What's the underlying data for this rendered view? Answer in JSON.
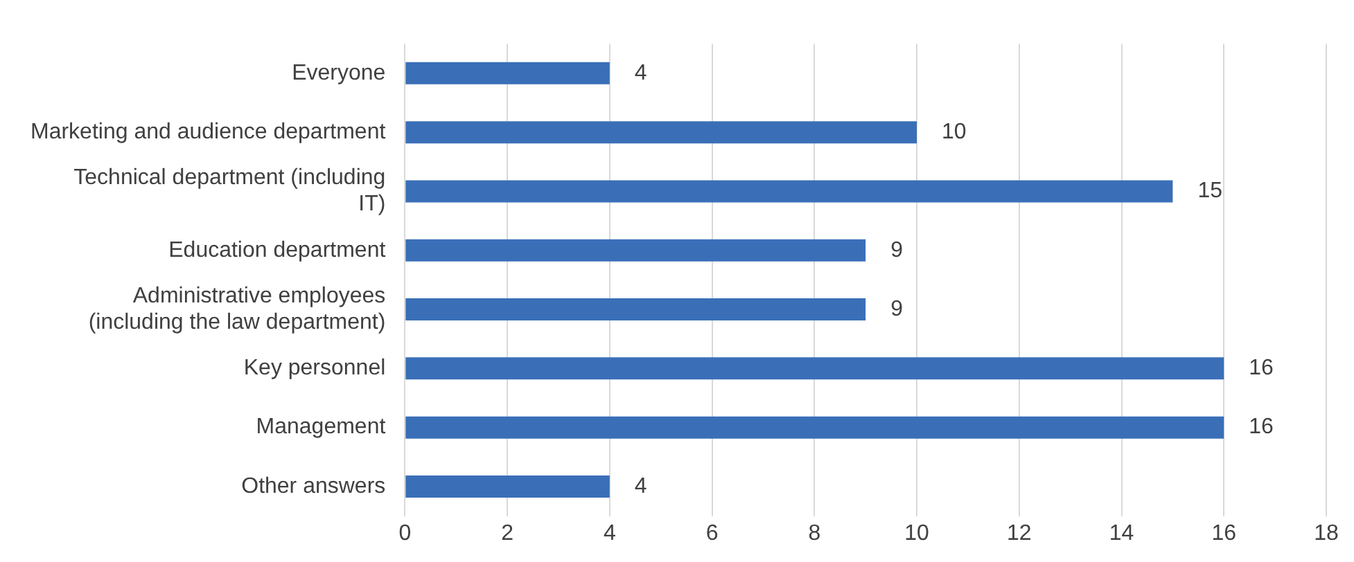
{
  "chart_data": {
    "type": "bar",
    "orientation": "horizontal",
    "categories": [
      "Everyone",
      "Marketing and audience department",
      "Technical department (including IT)",
      "Education department",
      "Administrative employees (including the law department)",
      "Key personnel",
      "Management",
      "Other answers"
    ],
    "values": [
      4,
      10,
      15,
      9,
      9,
      16,
      16,
      4
    ],
    "color": "#3a6fb8",
    "xlim": [
      0,
      18
    ],
    "xticks": [
      0,
      2,
      4,
      6,
      8,
      10,
      12,
      14,
      16,
      18
    ],
    "grid": "x",
    "data_labels": true,
    "legend": false
  }
}
